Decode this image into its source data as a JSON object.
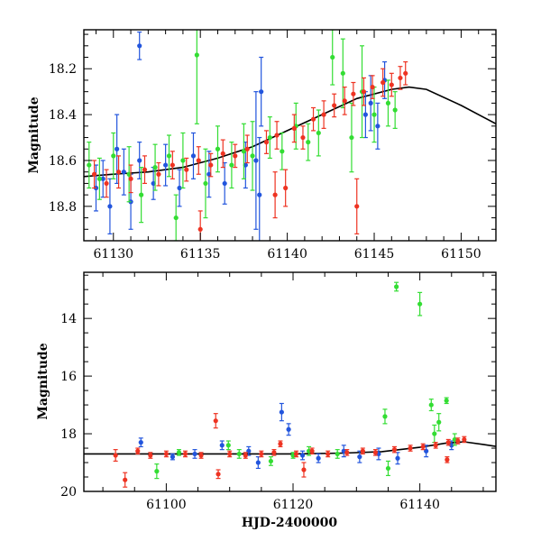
{
  "figure": {
    "xlabel": "HJD-2400000"
  },
  "colors": {
    "blue": "#2255dd",
    "green": "#33dd33",
    "red": "#ee3322",
    "model": "#000000"
  },
  "chart_data": [
    {
      "type": "scatter",
      "name": "top-panel",
      "ylabel": "Magnitude",
      "xlim": [
        61128.3,
        61152
      ],
      "ylim": [
        18.95,
        18.03
      ],
      "x_ticks": [
        61130,
        61135,
        61140,
        61145,
        61150
      ],
      "x_tick_labels": [
        "61130",
        "61135",
        "61140",
        "61145",
        "61150"
      ],
      "y_ticks": [
        18.2,
        18.4,
        18.6,
        18.8
      ],
      "y_tick_labels": [
        "18.2",
        "18.4",
        "18.6",
        "18.8"
      ],
      "model_curve": {
        "x": [
          61128.3,
          61130,
          61132,
          61134,
          61136,
          61138,
          61140,
          61142,
          61144,
          61146,
          61147,
          61148,
          61150,
          61152
        ],
        "y": [
          18.67,
          18.66,
          18.65,
          18.63,
          18.59,
          18.54,
          18.47,
          18.4,
          18.33,
          18.29,
          18.28,
          18.29,
          18.36,
          18.44
        ]
      },
      "series": [
        {
          "name": "blue",
          "color_key": "blue",
          "points": [
            [
              61129.0,
              18.72,
              0.1
            ],
            [
              61129.4,
              18.68,
              0.08
            ],
            [
              61129.8,
              18.8,
              0.12
            ],
            [
              61130.2,
              18.55,
              0.15
            ],
            [
              61130.6,
              18.65,
              0.1
            ],
            [
              61131.0,
              18.78,
              0.12
            ],
            [
              61131.5,
              18.6,
              0.08
            ],
            [
              61132.3,
              18.7,
              0.07
            ],
            [
              61133.0,
              18.62,
              0.09
            ],
            [
              61133.8,
              18.72,
              0.08
            ],
            [
              61134.6,
              18.58,
              0.1
            ],
            [
              61135.5,
              18.66,
              0.1
            ],
            [
              61136.4,
              18.7,
              0.09
            ],
            [
              61137.6,
              18.62,
              0.1
            ],
            [
              61138.2,
              18.6,
              0.3
            ],
            [
              61138.4,
              18.75,
              0.25
            ],
            [
              61138.5,
              18.3,
              0.15
            ],
            [
              61144.5,
              18.4,
              0.1
            ],
            [
              61144.8,
              18.35,
              0.12
            ],
            [
              61145.2,
              18.45,
              0.1
            ],
            [
              61145.6,
              18.25,
              0.08
            ],
            [
              61131.5,
              18.1,
              0.06
            ]
          ]
        },
        {
          "name": "green",
          "color_key": "green",
          "points": [
            [
              61128.6,
              18.62,
              0.1
            ],
            [
              61129.2,
              18.68,
              0.09
            ],
            [
              61130.0,
              18.58,
              0.1
            ],
            [
              61130.9,
              18.66,
              0.12
            ],
            [
              61131.6,
              18.75,
              0.12
            ],
            [
              61132.4,
              18.63,
              0.1
            ],
            [
              61133.2,
              18.58,
              0.09
            ],
            [
              61134.0,
              18.6,
              0.12
            ],
            [
              61134.8,
              18.14,
              0.3
            ],
            [
              61135.3,
              18.7,
              0.15
            ],
            [
              61136.0,
              18.55,
              0.1
            ],
            [
              61136.8,
              18.62,
              0.1
            ],
            [
              61137.5,
              18.56,
              0.12
            ],
            [
              61138.0,
              18.58,
              0.15
            ],
            [
              61139.0,
              18.5,
              0.09
            ],
            [
              61139.7,
              18.56,
              0.08
            ],
            [
              61140.5,
              18.45,
              0.1
            ],
            [
              61141.2,
              18.52,
              0.08
            ],
            [
              61141.8,
              18.48,
              0.1
            ],
            [
              61142.6,
              18.15,
              0.12
            ],
            [
              61143.2,
              18.22,
              0.15
            ],
            [
              61143.7,
              18.5,
              0.15
            ],
            [
              61144.3,
              18.3,
              0.2
            ],
            [
              61145.0,
              18.4,
              0.12
            ],
            [
              61145.8,
              18.35,
              0.1
            ],
            [
              61146.2,
              18.38,
              0.08
            ],
            [
              61133.6,
              18.85,
              0.1
            ]
          ]
        },
        {
          "name": "red",
          "color_key": "red",
          "points": [
            [
              61128.9,
              18.66,
              0.06
            ],
            [
              61129.6,
              18.7,
              0.06
            ],
            [
              61130.3,
              18.65,
              0.07
            ],
            [
              61131.0,
              18.68,
              0.06
            ],
            [
              61131.8,
              18.64,
              0.06
            ],
            [
              61132.6,
              18.66,
              0.05
            ],
            [
              61133.4,
              18.62,
              0.06
            ],
            [
              61134.2,
              18.64,
              0.05
            ],
            [
              61134.9,
              18.6,
              0.06
            ],
            [
              61135.6,
              18.62,
              0.05
            ],
            [
              61136.3,
              18.57,
              0.06
            ],
            [
              61137.0,
              18.58,
              0.05
            ],
            [
              61137.7,
              18.55,
              0.06
            ],
            [
              61138.8,
              18.52,
              0.05
            ],
            [
              61139.4,
              18.49,
              0.06
            ],
            [
              61139.9,
              18.72,
              0.08
            ],
            [
              61140.4,
              18.46,
              0.06
            ],
            [
              61140.9,
              18.5,
              0.05
            ],
            [
              61141.5,
              18.42,
              0.05
            ],
            [
              61142.1,
              18.4,
              0.06
            ],
            [
              61142.7,
              18.36,
              0.05
            ],
            [
              61143.3,
              18.34,
              0.06
            ],
            [
              61143.8,
              18.31,
              0.05
            ],
            [
              61144.4,
              18.3,
              0.06
            ],
            [
              61144.9,
              18.28,
              0.05
            ],
            [
              61145.5,
              18.26,
              0.06
            ],
            [
              61146.0,
              18.27,
              0.05
            ],
            [
              61146.5,
              18.24,
              0.05
            ],
            [
              61146.8,
              18.22,
              0.05
            ],
            [
              61144.0,
              18.8,
              0.12
            ],
            [
              61135.0,
              18.9,
              0.08
            ],
            [
              61139.3,
              18.75,
              0.1
            ]
          ]
        }
      ]
    },
    {
      "type": "scatter",
      "name": "bottom-panel",
      "ylabel": "Magnitude",
      "xlabel": "HJD-2400000",
      "xlim": [
        61087,
        61152
      ],
      "ylim": [
        20.0,
        12.4
      ],
      "x_ticks": [
        61100,
        61120,
        61140
      ],
      "x_tick_labels": [
        "61100",
        "61120",
        "61140"
      ],
      "y_ticks": [
        14,
        16,
        18,
        20
      ],
      "y_tick_labels": [
        "14",
        "16",
        "18",
        "20"
      ],
      "model_curve": {
        "x": [
          61087,
          61100,
          61110,
          61120,
          61128,
          61134,
          61140,
          61144,
          61147,
          61150,
          61152
        ],
        "y": [
          18.7,
          18.7,
          18.7,
          18.7,
          18.67,
          18.62,
          18.47,
          18.33,
          18.28,
          18.37,
          18.44
        ]
      },
      "series": [
        {
          "name": "blue",
          "color_key": "blue",
          "points": [
            [
              61096.0,
              18.3,
              0.15
            ],
            [
              61104.5,
              18.7,
              0.15
            ],
            [
              61108.8,
              18.4,
              0.15
            ],
            [
              61113.0,
              18.6,
              0.15
            ],
            [
              61114.5,
              19.0,
              0.2
            ],
            [
              61118.2,
              17.25,
              0.3
            ],
            [
              61119.3,
              17.85,
              0.2
            ],
            [
              61124.0,
              18.85,
              0.15
            ],
            [
              61128.0,
              18.6,
              0.2
            ],
            [
              61130.5,
              18.8,
              0.2
            ],
            [
              61133.5,
              18.7,
              0.2
            ],
            [
              61136.5,
              18.85,
              0.2
            ],
            [
              61141.0,
              18.6,
              0.2
            ],
            [
              61145.0,
              18.4,
              0.15
            ],
            [
              61101.0,
              18.8,
              0.1
            ],
            [
              61121.5,
              18.75,
              0.15
            ]
          ]
        },
        {
          "name": "green",
          "color_key": "green",
          "points": [
            [
              61098.5,
              19.3,
              0.25
            ],
            [
              61109.8,
              18.4,
              0.15
            ],
            [
              61111.5,
              18.7,
              0.15
            ],
            [
              61116.5,
              18.95,
              0.15
            ],
            [
              61122.5,
              18.6,
              0.15
            ],
            [
              61127.0,
              18.7,
              0.15
            ],
            [
              61134.5,
              17.4,
              0.25
            ],
            [
              61135.0,
              19.2,
              0.25
            ],
            [
              61136.3,
              12.9,
              0.15
            ],
            [
              61140.0,
              13.5,
              0.4
            ],
            [
              61141.8,
              17.0,
              0.2
            ],
            [
              61142.3,
              18.0,
              0.3
            ],
            [
              61143.0,
              17.6,
              0.3
            ],
            [
              61144.2,
              16.85,
              0.1
            ],
            [
              61145.5,
              18.2,
              0.2
            ],
            [
              61120.0,
              18.75,
              0.1
            ],
            [
              61102.0,
              18.65,
              0.1
            ]
          ]
        },
        {
          "name": "red",
          "color_key": "red",
          "points": [
            [
              61092.0,
              18.75,
              0.2
            ],
            [
              61093.5,
              19.6,
              0.25
            ],
            [
              61095.5,
              18.6,
              0.1
            ],
            [
              61097.5,
              18.75,
              0.1
            ],
            [
              61100.0,
              18.7,
              0.1
            ],
            [
              61103.0,
              18.7,
              0.1
            ],
            [
              61105.5,
              18.75,
              0.1
            ],
            [
              61107.8,
              17.55,
              0.25
            ],
            [
              61108.2,
              19.4,
              0.15
            ],
            [
              61110.0,
              18.7,
              0.1
            ],
            [
              61112.5,
              18.75,
              0.1
            ],
            [
              61115.0,
              18.7,
              0.1
            ],
            [
              61117.0,
              18.65,
              0.1
            ],
            [
              61120.5,
              18.7,
              0.1
            ],
            [
              61121.7,
              19.25,
              0.25
            ],
            [
              61123.0,
              18.6,
              0.1
            ],
            [
              61125.5,
              18.7,
              0.1
            ],
            [
              61128.5,
              18.65,
              0.1
            ],
            [
              61131.0,
              18.6,
              0.1
            ],
            [
              61133.0,
              18.65,
              0.1
            ],
            [
              61136.0,
              18.55,
              0.1
            ],
            [
              61138.5,
              18.5,
              0.1
            ],
            [
              61140.5,
              18.45,
              0.1
            ],
            [
              61142.5,
              18.4,
              0.1
            ],
            [
              61144.5,
              18.3,
              0.1
            ],
            [
              61146.0,
              18.25,
              0.1
            ],
            [
              61147.0,
              18.2,
              0.1
            ],
            [
              61144.3,
              18.9,
              0.1
            ],
            [
              61118.0,
              18.35,
              0.1
            ]
          ]
        }
      ]
    }
  ]
}
